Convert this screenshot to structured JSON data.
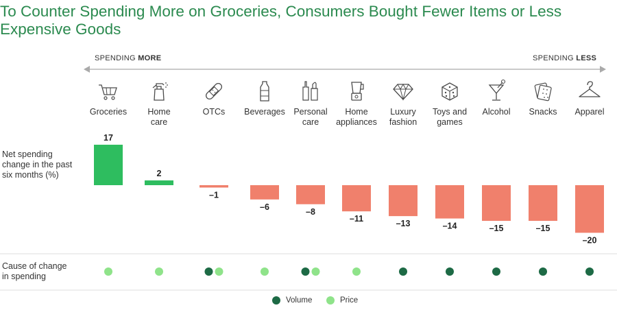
{
  "title": "To Counter Spending More on Groceries, Consumers Bought Fewer Items or Less Expensive Goods",
  "arrow": {
    "left_prefix": "SPENDING ",
    "left_bold": "MORE",
    "right_prefix": "SPENDING ",
    "right_bold": "LESS"
  },
  "row_labels": {
    "net_change": "Net spending change in the past six months (%)",
    "cause": "Cause of change in spending"
  },
  "legend": {
    "volume": "Volume",
    "price": "Price"
  },
  "colors": {
    "title": "#2b8a4f",
    "positive_bar": "#2ebd5f",
    "negative_bar": "#f0806c",
    "volume_dot": "#1d6a45",
    "price_dot": "#8fe38a",
    "icon": "#4a4a4a",
    "divider": "#dddddd"
  },
  "chart_data": {
    "type": "bar",
    "title": "To Counter Spending More on Groceries, Consumers Bought Fewer Items or Less Expensive Goods",
    "ylabel": "Net spending change in the past six months (%)",
    "categories": [
      "Groceries",
      "Home care",
      "OTCs",
      "Beverages",
      "Personal care",
      "Home appliances",
      "Luxury fashion",
      "Toys and games",
      "Alcohol",
      "Snacks",
      "Apparel"
    ],
    "category_lines": [
      [
        "Groceries"
      ],
      [
        "Home",
        "care"
      ],
      [
        "OTCs"
      ],
      [
        "Beverages"
      ],
      [
        "Personal",
        "care"
      ],
      [
        "Home",
        "appliances"
      ],
      [
        "Luxury",
        "fashion"
      ],
      [
        "Toys and",
        "games"
      ],
      [
        "Alcohol"
      ],
      [
        "Snacks"
      ],
      [
        "Apparel"
      ]
    ],
    "icons": [
      "cart-icon",
      "spray-bottle-icon",
      "bandage-icon",
      "water-bottle-icon",
      "cosmetics-icon",
      "blender-icon",
      "diamond-icon",
      "dice-icon",
      "cocktail-icon",
      "cracker-icon",
      "hanger-icon"
    ],
    "values": [
      17,
      2,
      -1,
      -6,
      -8,
      -11,
      -13,
      -14,
      -15,
      -15,
      -20
    ],
    "value_labels": [
      "17",
      "2",
      "–1",
      "–6",
      "–8",
      "–11",
      "–13",
      "–14",
      "–15",
      "–15",
      "–20"
    ],
    "causes": [
      [
        "price"
      ],
      [
        "price"
      ],
      [
        "volume",
        "price"
      ],
      [
        "price"
      ],
      [
        "volume",
        "price"
      ],
      [
        "price"
      ],
      [
        "volume"
      ],
      [
        "volume"
      ],
      [
        "volume"
      ],
      [
        "volume"
      ],
      [
        "volume"
      ]
    ],
    "legend": [
      "Volume",
      "Price"
    ]
  }
}
